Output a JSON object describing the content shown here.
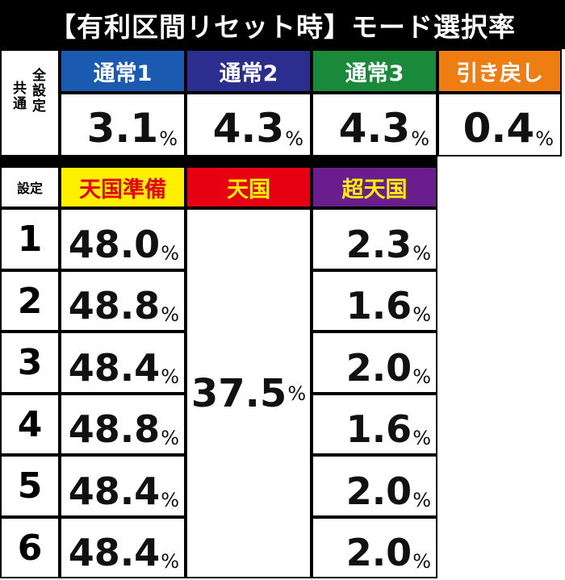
{
  "title": "【有利区間リセット時】モード選択率",
  "top": {
    "side_label_line1": [
      "全",
      "設",
      "定"
    ],
    "side_label_line2": [
      "共",
      "通"
    ],
    "modes": [
      {
        "label": "通常1",
        "value": "3.1",
        "unit": "%",
        "color": "#1a5ab0"
      },
      {
        "label": "通常2",
        "value": "4.3",
        "unit": "%",
        "color": "#2b2d8f"
      },
      {
        "label": "通常3",
        "value": "4.3",
        "unit": "%",
        "color": "#1a8a3a"
      },
      {
        "label": "引き戻し",
        "value": "0.4",
        "unit": "%",
        "color": "#ee7d12"
      }
    ]
  },
  "bottom": {
    "setting_header": "設定",
    "columns": [
      {
        "label": "天国準備",
        "bg": "#fff000",
        "fg": "#e60012"
      },
      {
        "label": "天国",
        "bg": "#e60012",
        "fg": "#fff000"
      },
      {
        "label": "超天国",
        "bg": "#6a1e8e",
        "fg": "#fff000"
      }
    ],
    "tengoku_value": "37.5",
    "unit": "%",
    "rows": [
      {
        "setting": "1",
        "junbi": "48.0",
        "chou": "2.3"
      },
      {
        "setting": "2",
        "junbi": "48.8",
        "chou": "1.6"
      },
      {
        "setting": "3",
        "junbi": "48.4",
        "chou": "2.0"
      },
      {
        "setting": "4",
        "junbi": "48.8",
        "chou": "1.6"
      },
      {
        "setting": "5",
        "junbi": "48.4",
        "chou": "2.0"
      },
      {
        "setting": "6",
        "junbi": "48.4",
        "chou": "2.0"
      }
    ]
  }
}
